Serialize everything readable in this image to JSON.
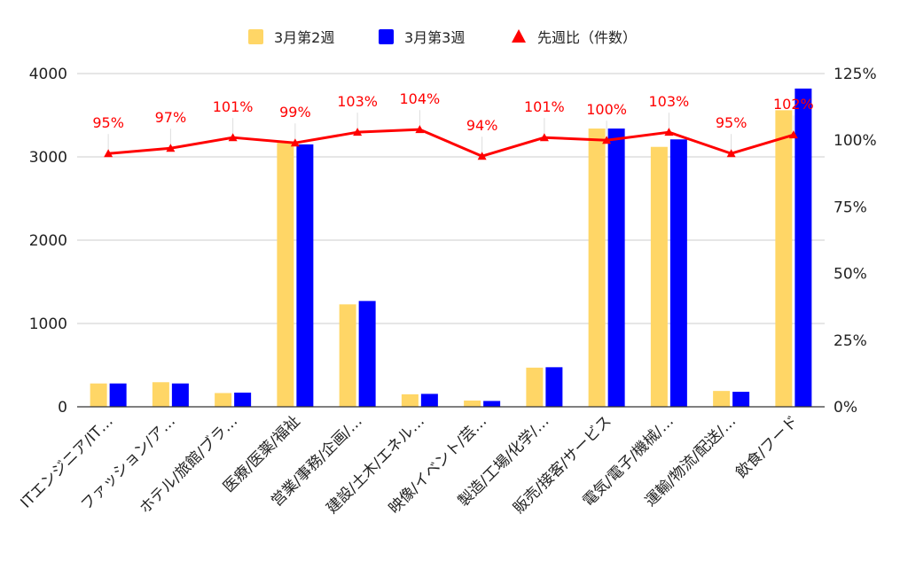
{
  "chart_data": {
    "type": "bar",
    "categories": [
      "ITエンジニア/IT…",
      "ファッション/ア…",
      "ホテル/旅館/ブラ…",
      "医療/医薬/福祉",
      "営業/事務/企画/…",
      "建設/土木/エネル…",
      "映像/イベント/芸…",
      "製造/工場/化学/…",
      "販売/接客/サービス",
      "電気/電子/機械/…",
      "運輸/物流/配送/…",
      "飲食/フード"
    ],
    "series": [
      {
        "name": "3月第2週",
        "type": "bar",
        "axis": "left",
        "color": "#ffd666",
        "values": [
          280,
          295,
          165,
          3170,
          1230,
          150,
          75,
          470,
          3340,
          3120,
          190,
          3560
        ]
      },
      {
        "name": "3月第3週",
        "type": "bar",
        "axis": "left",
        "color": "#0000ff",
        "values": [
          280,
          280,
          170,
          3150,
          1270,
          155,
          70,
          475,
          3340,
          3210,
          180,
          3820
        ]
      },
      {
        "name": "先週比（件数）",
        "type": "line",
        "axis": "right",
        "color": "#ff0000",
        "marker": "triangle",
        "values": [
          95,
          97,
          101,
          99,
          103,
          104,
          94,
          101,
          100,
          103,
          95,
          102
        ],
        "labels": [
          "95%",
          "97%",
          "101%",
          "99%",
          "103%",
          "104%",
          "94%",
          "101%",
          "100%",
          "103%",
          "95%",
          "102%"
        ]
      }
    ],
    "y_left": {
      "min": 0,
      "max": 4000,
      "ticks": [
        "0",
        "1000",
        "2000",
        "3000",
        "4000"
      ]
    },
    "y_right": {
      "min": 0,
      "max": 125,
      "ticks": [
        "0%",
        "25%",
        "50%",
        "75%",
        "100%",
        "125%"
      ]
    },
    "grid": true,
    "legend_position": "top"
  }
}
